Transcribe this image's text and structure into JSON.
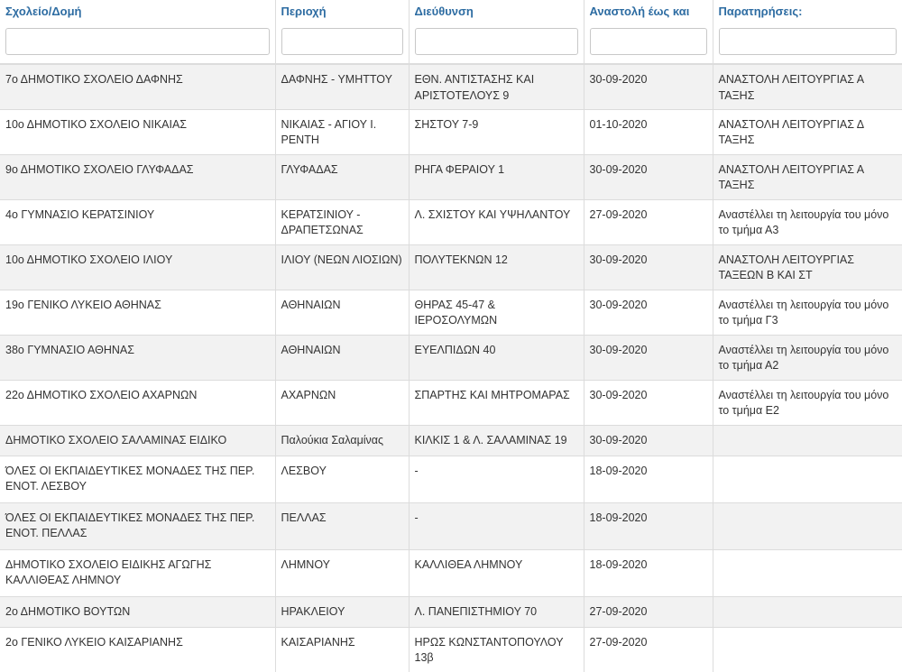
{
  "columns": [
    "Σχολείο/Δομή",
    "Περιοχή",
    "Διεύθυνση",
    "Αναστολή έως και",
    "Παρατηρήσεις:"
  ],
  "filters": [
    "",
    "",
    "",
    "",
    ""
  ],
  "rows": [
    {
      "school": "7ο ΔΗΜΟΤΙΚΟ ΣΧΟΛΕΙΟ ΔΑΦΝΗΣ",
      "area": "ΔΑΦΝΗΣ - ΥΜΗΤΤΟΥ",
      "address": "ΕΘΝ. ΑΝΤΙΣΤΑΣΗΣ ΚΑΙ ΑΡΙΣΤΟΤΕΛΟΥΣ 9",
      "until": "30-09-2020",
      "notes": "ΑΝΑΣΤΟΛΗ ΛΕΙΤΟΥΡΓΙΑΣ Α ΤΑΞΗΣ"
    },
    {
      "school": "10ο ΔΗΜΟΤΙΚΟ ΣΧΟΛΕΙΟ ΝΙΚΑΙΑΣ",
      "area": "ΝΙΚΑΙΑΣ - ΑΓΙΟΥ Ι. ΡΕΝΤΗ",
      "address": "ΣΗΣΤΟΥ 7-9",
      "until": "01-10-2020",
      "notes": "ΑΝΑΣΤΟΛΗ ΛΕΙΤΟΥΡΓΙΑΣ Δ ΤΑΞΗΣ"
    },
    {
      "school": "9ο ΔΗΜΟΤΙΚΟ ΣΧΟΛΕΙΟ ΓΛΥΦΑΔΑΣ",
      "area": "ΓΛΥΦΑΔΑΣ",
      "address": "ΡΗΓΑ ΦΕΡΑΙΟΥ 1",
      "until": "30-09-2020",
      "notes": "ΑΝΑΣΤΟΛΗ ΛΕΙΤΟΥΡΓΙΑΣ Α ΤΑΞΗΣ"
    },
    {
      "school": "4ο ΓΥΜΝΑΣΙΟ ΚΕΡΑΤΣΙΝΙΟΥ",
      "area": "ΚΕΡΑΤΣΙΝΙΟΥ - ΔΡΑΠΕΤΣΩΝΑΣ",
      "address": "Λ. ΣΧΙΣΤΟΥ ΚΑΙ ΥΨΗΛΑΝΤΟΥ",
      "until": "27-09-2020",
      "notes": "Αναστέλλει τη λειτουργία του μόνο το τμήμα Α3"
    },
    {
      "school": "10ο ΔΗΜΟΤΙΚΟ ΣΧΟΛΕΙΟ ΙΛΙΟΥ",
      "area": "ΙΛΙΟΥ (ΝΕΩΝ ΛΙΟΣΙΩΝ)",
      "address": "ΠΟΛΥΤΕΚΝΩΝ 12",
      "until": "30-09-2020",
      "notes": "ΑΝΑΣΤΟΛΗ ΛΕΙΤΟΥΡΓΙΑΣ ΤΑΞΕΩΝ Β ΚΑΙ ΣΤ"
    },
    {
      "school": "19ο ΓΕΝΙΚΟ ΛΥΚΕΙΟ ΑΘΗΝΑΣ",
      "area": "ΑΘΗΝΑΙΩΝ",
      "address": "ΘΗΡΑΣ 45-47 & ΙΕΡΟΣΟΛΥΜΩΝ",
      "until": "30-09-2020",
      "notes": "Αναστέλλει τη λειτουργία του μόνο το τμήμα Γ3"
    },
    {
      "school": "38ο ΓΥΜΝΑΣΙΟ ΑΘΗΝΑΣ",
      "area": "ΑΘΗΝΑΙΩΝ",
      "address": "ΕΥΕΛΠΙΔΩΝ 40",
      "until": "30-09-2020",
      "notes": "Αναστέλλει τη λειτουργία του μόνο το τμήμα Α2"
    },
    {
      "school": "22ο ΔΗΜΟΤΙΚΟ ΣΧΟΛΕΙΟ ΑΧΑΡΝΩΝ",
      "area": "ΑΧΑΡΝΩΝ",
      "address": "ΣΠΑΡΤΗΣ ΚΑΙ ΜΗΤΡΟΜΑΡΑΣ",
      "until": "30-09-2020",
      "notes": "Αναστέλλει τη λειτουργία του μόνο το τμήμα Ε2"
    },
    {
      "school": "ΔΗΜΟΤΙΚΟ ΣΧΟΛΕΙΟ ΣΑΛΑΜΙΝΑΣ ΕΙΔΙΚΟ",
      "area": "Παλούκια Σαλαμίνας",
      "address": "ΚΙΛΚΙΣ 1 & Λ. ΣΑΛΑΜΙΝΑΣ 19",
      "until": "30-09-2020",
      "notes": ""
    },
    {
      "school": "ΌΛΕΣ ΟΙ ΕΚΠΑΙΔΕΥΤΙΚΕΣ ΜΟΝΑΔΕΣ ΤΗΣ ΠΕΡ. ΕΝΟΤ. ΛΕΣΒΟΥ",
      "area": "ΛΕΣΒΟΥ",
      "address": "-",
      "until": "18-09-2020",
      "notes": ""
    },
    {
      "school": "ΌΛΕΣ ΟΙ ΕΚΠΑΙΔΕΥΤΙΚΕΣ ΜΟΝΑΔΕΣ ΤΗΣ ΠΕΡ. ΕΝΟΤ. ΠΕΛΛΑΣ",
      "area": "ΠΕΛΛΑΣ",
      "address": "-",
      "until": "18-09-2020",
      "notes": ""
    },
    {
      "school": "ΔΗΜΟΤΙΚΟ ΣΧΟΛΕΙΟ ΕΙΔΙΚΗΣ ΑΓΩΓΗΣ ΚΑΛΛΙΘΕΑΣ ΛΗΜΝΟΥ",
      "area": "ΛΗΜΝΟΥ",
      "address": "ΚΑΛΛΙΘΕΑ ΛΗΜΝΟΥ",
      "until": "18-09-2020",
      "notes": ""
    },
    {
      "school": "2ο ΔΗΜΟΤΙΚΟ ΒΟΥΤΩΝ",
      "area": "ΗΡΑΚΛΕΙΟΥ",
      "address": "Λ. ΠΑΝΕΠΙΣΤΗΜΙΟΥ 70",
      "until": "27-09-2020",
      "notes": ""
    },
    {
      "school": "2ο ΓΕΝΙΚΟ ΛΥΚΕΙΟ ΚΑΙΣΑΡΙΑΝΗΣ",
      "area": "ΚΑΙΣΑΡΙΑΝΗΣ",
      "address": "ΗΡΩΣ ΚΩΝΣΤΑΝΤΟΠΟΥΛΟΥ 13β",
      "until": "27-09-2020",
      "notes": ""
    }
  ]
}
